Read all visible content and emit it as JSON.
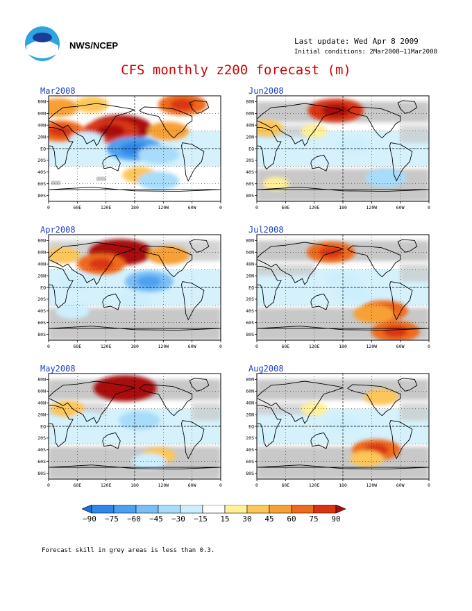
{
  "header": {
    "org": "NWS/NCEP",
    "last_update": "Last update: Wed Apr 8 2009",
    "initial_conditions": "Initial conditions: 2Mar2008–11Mar2008",
    "title": "CFS monthly z200 forecast (m)"
  },
  "panels": [
    {
      "label": "Mar2008",
      "skill": "low-grey-minimal",
      "anomalies": [
        {
          "lon": 150,
          "lat": 35,
          "value": 90
        },
        {
          "lon": 130,
          "lat": 30,
          "value": 75
        },
        {
          "lon": 25,
          "lat": 30,
          "value": 60
        },
        {
          "lon": 250,
          "lat": 30,
          "value": 45
        },
        {
          "lon": 280,
          "lat": 75,
          "value": 60
        },
        {
          "lon": 20,
          "lat": 70,
          "value": 45
        },
        {
          "lon": 90,
          "lat": 75,
          "value": 30
        },
        {
          "lon": 180,
          "lat": 0,
          "value": -75
        },
        {
          "lon": 230,
          "lat": -10,
          "value": -45
        },
        {
          "lon": 80,
          "lat": 15,
          "value": -30
        },
        {
          "lon": 190,
          "lat": -45,
          "value": 30
        },
        {
          "lon": 230,
          "lat": -55,
          "value": -45
        }
      ]
    },
    {
      "label": "Jun2008",
      "skill": "mostly-grey",
      "anomalies": [
        {
          "lon": 165,
          "lat": 65,
          "value": 75
        },
        {
          "lon": 20,
          "lat": 35,
          "value": 30
        },
        {
          "lon": 120,
          "lat": 30,
          "value": 15
        },
        {
          "lon": 200,
          "lat": 5,
          "value": -30
        },
        {
          "lon": 270,
          "lat": -50,
          "value": -45
        },
        {
          "lon": 40,
          "lat": -60,
          "value": 15
        }
      ]
    },
    {
      "label": "Apr2008",
      "skill": "partial-grey",
      "anomalies": [
        {
          "lon": 150,
          "lat": 60,
          "value": 90
        },
        {
          "lon": 110,
          "lat": 40,
          "value": 60
        },
        {
          "lon": 30,
          "lat": 55,
          "value": 30
        },
        {
          "lon": 250,
          "lat": 55,
          "value": 45
        },
        {
          "lon": 210,
          "lat": 10,
          "value": -60
        },
        {
          "lon": 60,
          "lat": 10,
          "value": -30
        },
        {
          "lon": 180,
          "lat": -20,
          "value": -30
        },
        {
          "lon": 50,
          "lat": -40,
          "value": -30
        }
      ]
    },
    {
      "label": "Jul2008",
      "skill": "mostly-grey",
      "anomalies": [
        {
          "lon": 155,
          "lat": 60,
          "value": 60
        },
        {
          "lon": 180,
          "lat": 15,
          "value": -30
        },
        {
          "lon": 200,
          "lat": -10,
          "value": -30
        },
        {
          "lon": 265,
          "lat": -40,
          "value": 60
        },
        {
          "lon": 245,
          "lat": -45,
          "value": 45
        },
        {
          "lon": 290,
          "lat": -75,
          "value": 60
        }
      ]
    },
    {
      "label": "May2008",
      "skill": "mostly-grey",
      "anomalies": [
        {
          "lon": 160,
          "lat": 65,
          "value": 90
        },
        {
          "lon": 40,
          "lat": 30,
          "value": 30
        },
        {
          "lon": 190,
          "lat": 10,
          "value": -45
        },
        {
          "lon": 80,
          "lat": 10,
          "value": -30
        },
        {
          "lon": 230,
          "lat": -50,
          "value": 30
        },
        {
          "lon": 210,
          "lat": -60,
          "value": -30
        }
      ]
    },
    {
      "label": "Aug2008",
      "skill": "mostly-grey",
      "anomalies": [
        {
          "lon": 180,
          "lat": 5,
          "value": -30
        },
        {
          "lon": 260,
          "lat": 50,
          "value": 30
        },
        {
          "lon": 250,
          "lat": -40,
          "value": 60
        },
        {
          "lon": 230,
          "lat": -55,
          "value": 30
        },
        {
          "lon": 120,
          "lat": 30,
          "value": 15
        }
      ]
    }
  ],
  "axes": {
    "lat_labels": [
      "80N",
      "60N",
      "40N",
      "20N",
      "EQ",
      "20S",
      "40S",
      "60S",
      "80S"
    ],
    "lon_labels": [
      "0",
      "60E",
      "120E",
      "180",
      "120W",
      "60W",
      "0"
    ]
  },
  "colorbar": {
    "labels": [
      "-90",
      "-75",
      "-60",
      "-45",
      "-30",
      "-15",
      "15",
      "30",
      "45",
      "60",
      "75",
      "90"
    ],
    "colors": [
      "#1a6fd8",
      "#2e86e8",
      "#4ba0f0",
      "#79bff6",
      "#a8dcfb",
      "#cdeffd",
      "#ffffff",
      "#fff09a",
      "#fcc658",
      "#f7a035",
      "#ee6a1c",
      "#d93412",
      "#aa0c0c"
    ]
  },
  "footnote": "Forecast skill in grey areas is less than 0.3."
}
